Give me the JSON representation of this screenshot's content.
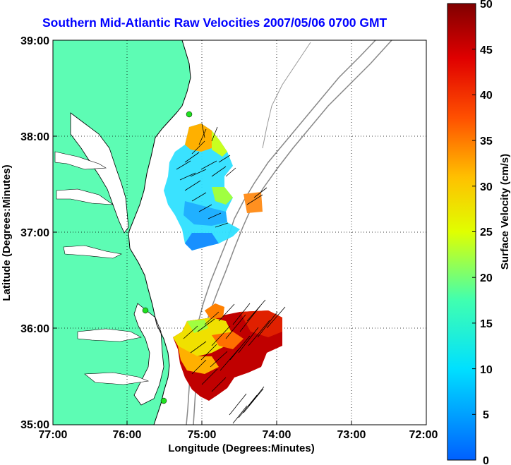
{
  "title": "Southern Mid-Atlantic Raw Velocities 2007/05/06 0700 GMT",
  "map": {
    "xlabel": "Longitude (Degrees:Minutes)",
    "ylabel": "Latitude (Degrees:Minutes)",
    "x_ticks": [
      "77:00",
      "76:00",
      "75:00",
      "74:00",
      "73:00",
      "72:00"
    ],
    "y_ticks": [
      "39:00",
      "38:00",
      "37:00",
      "36:00",
      "35:00"
    ],
    "land_color": "#5dfcb4",
    "grid": "dotted"
  },
  "colorbar": {
    "label": "Surface Velocity (cm/s)",
    "ticks": [
      "50",
      "45",
      "40",
      "35",
      "30",
      "25",
      "20",
      "15",
      "10",
      "5",
      "0"
    ],
    "range": [
      0,
      50
    ]
  },
  "stations_icon": "green-circle-station-icon"
}
